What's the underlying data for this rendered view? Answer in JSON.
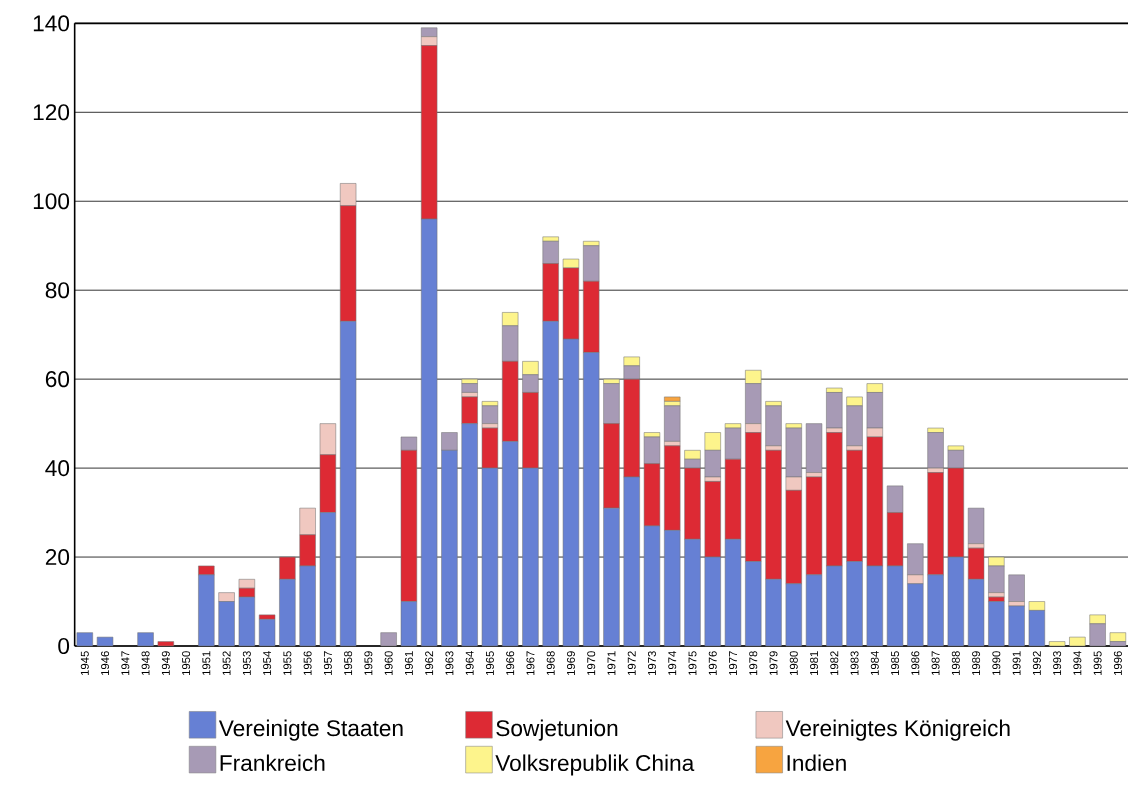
{
  "chart_data": {
    "type": "bar",
    "stacked": true,
    "grid": "y",
    "legend": "bottom",
    "categories": [
      "1945",
      "1946",
      "1947",
      "1948",
      "1949",
      "1950",
      "1951",
      "1952",
      "1953",
      "1954",
      "1955",
      "1956",
      "1957",
      "1958",
      "1959",
      "1960",
      "1961",
      "1962",
      "1963",
      "1964",
      "1965",
      "1966",
      "1967",
      "1968",
      "1969",
      "1970",
      "1971",
      "1972",
      "1973",
      "1974",
      "1975",
      "1976",
      "1977",
      "1978",
      "1979",
      "1980",
      "1981",
      "1982",
      "1983",
      "1984",
      "1985",
      "1986",
      "1987",
      "1988",
      "1989",
      "1990",
      "1991",
      "1992",
      "1993",
      "1994",
      "1995",
      "1996"
    ],
    "ylim": [
      0,
      140
    ],
    "yticks": [
      0,
      20,
      40,
      60,
      80,
      100,
      120,
      140
    ],
    "series": [
      {
        "name": "Vereinigte Staaten",
        "color": "#6680d4",
        "values": [
          3,
          2,
          0,
          3,
          0,
          0,
          16,
          10,
          11,
          6,
          15,
          18,
          30,
          73,
          0,
          0,
          10,
          96,
          44,
          50,
          40,
          46,
          40,
          73,
          69,
          66,
          31,
          38,
          27,
          26,
          24,
          20,
          24,
          19,
          15,
          14,
          16,
          18,
          19,
          18,
          18,
          14,
          16,
          20,
          15,
          10,
          9,
          8,
          0,
          0,
          0,
          0
        ]
      },
      {
        "name": "Sowjetunion",
        "color": "#dd2a34",
        "values": [
          0,
          0,
          0,
          0,
          1,
          0,
          2,
          0,
          2,
          1,
          5,
          7,
          13,
          26,
          0,
          0,
          34,
          39,
          0,
          6,
          9,
          18,
          17,
          13,
          16,
          16,
          19,
          22,
          14,
          19,
          16,
          17,
          18,
          29,
          29,
          21,
          22,
          30,
          25,
          29,
          12,
          0,
          23,
          20,
          7,
          1,
          0,
          0,
          0,
          0,
          0,
          0
        ]
      },
      {
        "name": "Vereinigtes Königreich",
        "color": "#f0c8c0",
        "values": [
          0,
          0,
          0,
          0,
          0,
          0,
          0,
          2,
          2,
          0,
          0,
          6,
          7,
          5,
          0,
          0,
          0,
          2,
          0,
          1,
          1,
          0,
          0,
          0,
          0,
          0,
          0,
          0,
          0,
          1,
          0,
          1,
          0,
          2,
          1,
          3,
          1,
          1,
          1,
          2,
          0,
          2,
          1,
          0,
          1,
          1,
          1,
          0,
          0,
          0,
          0,
          0
        ]
      },
      {
        "name": "Frankreich",
        "color": "#a79ab5",
        "values": [
          0,
          0,
          0,
          0,
          0,
          0,
          0,
          0,
          0,
          0,
          0,
          0,
          0,
          0,
          0,
          3,
          3,
          2,
          4,
          2,
          4,
          8,
          4,
          5,
          0,
          8,
          9,
          3,
          6,
          8,
          2,
          6,
          7,
          9,
          9,
          11,
          11,
          8,
          9,
          8,
          6,
          7,
          8,
          4,
          8,
          6,
          6,
          0,
          0,
          0,
          5,
          1
        ]
      },
      {
        "name": "Volksrepublik China",
        "color": "#fdf48c",
        "values": [
          0,
          0,
          0,
          0,
          0,
          0,
          0,
          0,
          0,
          0,
          0,
          0,
          0,
          0,
          0,
          0,
          0,
          0,
          0,
          1,
          1,
          3,
          3,
          1,
          2,
          1,
          1,
          2,
          1,
          1,
          2,
          4,
          1,
          3,
          1,
          1,
          0,
          1,
          2,
          2,
          0,
          0,
          1,
          1,
          0,
          2,
          0,
          2,
          1,
          2,
          2,
          2
        ]
      },
      {
        "name": "Indien",
        "color": "#f7a440",
        "values": [
          0,
          0,
          0,
          0,
          0,
          0,
          0,
          0,
          0,
          0,
          0,
          0,
          0,
          0,
          0,
          0,
          0,
          0,
          0,
          0,
          0,
          0,
          0,
          0,
          0,
          0,
          0,
          0,
          0,
          1,
          0,
          0,
          0,
          0,
          0,
          0,
          0,
          0,
          0,
          0,
          0,
          0,
          0,
          0,
          0,
          0,
          0,
          0,
          0,
          0,
          0,
          0
        ]
      }
    ]
  }
}
